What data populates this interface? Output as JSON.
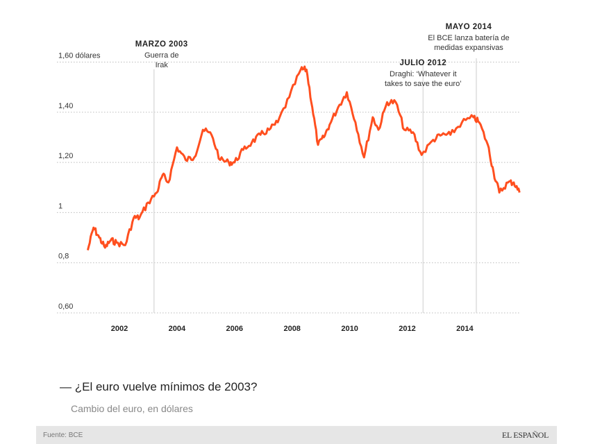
{
  "chart_data": {
    "type": "line",
    "title": "¿El euro vuelve mínimos de 2003?",
    "subtitle": "Cambio del euro, en dólares",
    "ylim": [
      0.6,
      1.6
    ],
    "xlim": [
      2000.9,
      2015.9
    ],
    "y_ticks": [
      {
        "value": 1.6,
        "label": "1,60 dólares"
      },
      {
        "value": 1.4,
        "label": "1,40"
      },
      {
        "value": 1.2,
        "label": "1,20"
      },
      {
        "value": 1.0,
        "label": "1"
      },
      {
        "value": 0.8,
        "label": "0,8"
      },
      {
        "value": 0.6,
        "label": "0,60"
      }
    ],
    "x_ticks": [
      "2002",
      "2004",
      "2006",
      "2008",
      "2010",
      "2012",
      "2014"
    ],
    "grid": "horizontal dotted",
    "line_color": "#ff4f1f",
    "series": [
      {
        "x": [
          2000.9,
          2001.1,
          2001.3,
          2001.5,
          2001.7,
          2001.9,
          2002.2,
          2002.5,
          2002.7,
          2003.0,
          2003.3,
          2003.5,
          2003.7,
          2004.0,
          2004.3,
          2004.6,
          2004.9,
          2005.2,
          2005.5,
          2005.8,
          2006.0,
          2006.3,
          2006.6,
          2006.9,
          2007.2,
          2007.5,
          2007.9,
          2008.3,
          2008.5,
          2008.7,
          2008.9,
          2009.1,
          2009.3,
          2009.6,
          2009.9,
          2010.2,
          2010.5,
          2010.8,
          2011.0,
          2011.3,
          2011.6,
          2011.9,
          2012.2,
          2012.5,
          2012.9,
          2013.2,
          2013.5,
          2013.9,
          2014.3,
          2014.5,
          2014.8,
          2015.0,
          2015.2,
          2015.5,
          2015.7,
          2015.9
        ],
        "y": [
          0.85,
          0.94,
          0.9,
          0.86,
          0.89,
          0.88,
          0.87,
          0.98,
          0.98,
          1.04,
          1.08,
          1.15,
          1.12,
          1.26,
          1.21,
          1.22,
          1.33,
          1.31,
          1.21,
          1.2,
          1.2,
          1.25,
          1.28,
          1.31,
          1.33,
          1.36,
          1.46,
          1.57,
          1.57,
          1.42,
          1.27,
          1.3,
          1.35,
          1.42,
          1.48,
          1.36,
          1.22,
          1.38,
          1.33,
          1.44,
          1.44,
          1.33,
          1.32,
          1.23,
          1.29,
          1.31,
          1.31,
          1.36,
          1.38,
          1.36,
          1.27,
          1.16,
          1.08,
          1.12,
          1.12,
          1.08
        ]
      }
    ],
    "annotations": [
      {
        "x": 2003.2,
        "title": "MARZO 2003",
        "text": [
          "Guerra de",
          "Irak"
        ]
      },
      {
        "x": 2012.55,
        "title": "JULIO 2012",
        "text": [
          "Draghi: ‘Whatever it",
          "takes to save the euro’"
        ]
      },
      {
        "x": 2014.4,
        "title": "MAYO 2014",
        "text": [
          "El BCE lanza batería de",
          "medidas expansivas"
        ]
      }
    ]
  },
  "header": {
    "title": "¿El euro vuelve mínimos de 2003?",
    "subtitle": "Cambio del euro, en dólares"
  },
  "footer": {
    "source": "Fuente: BCE",
    "logo": "EL ESPAÑOL"
  }
}
